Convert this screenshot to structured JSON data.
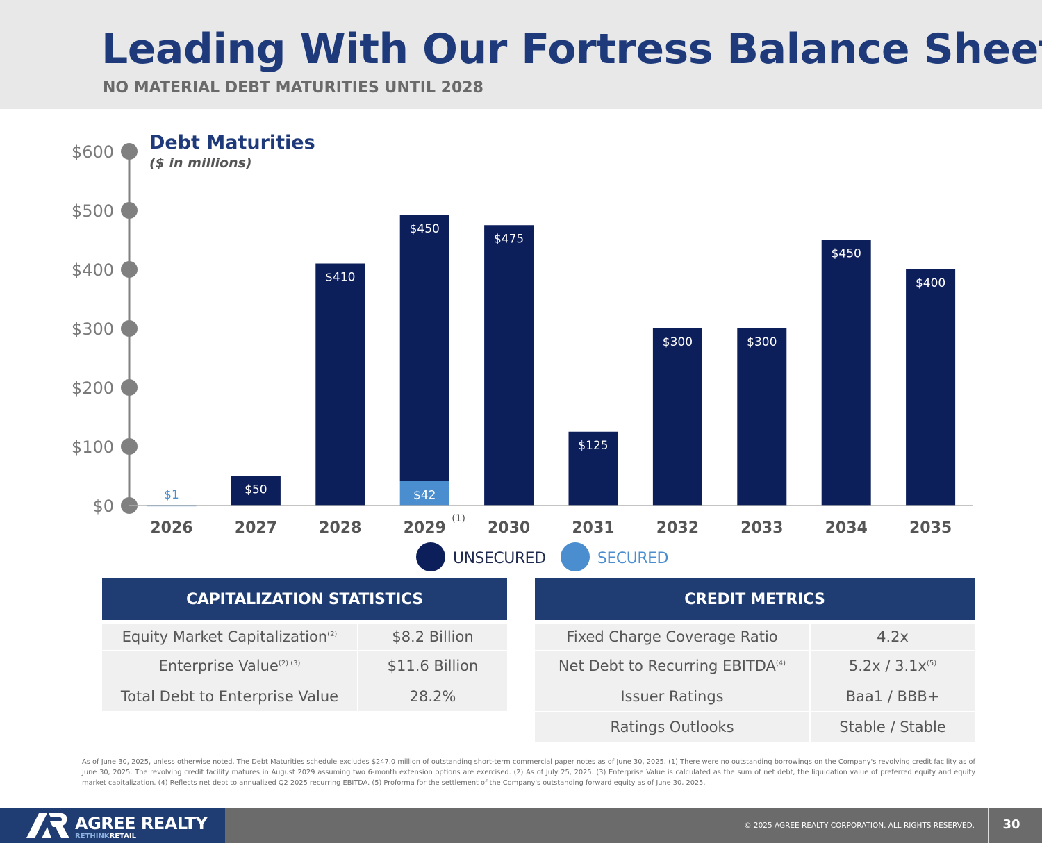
{
  "header": {
    "title": "Leading With Our Fortress Balance Sheet",
    "subtitle": "NO MATERIAL DEBT MATURITIES UNTIL 2028"
  },
  "chart_data": {
    "type": "bar",
    "stacked": true,
    "title": "Debt Maturities",
    "subtitle": "($ in millions)",
    "ylim": [
      0,
      600
    ],
    "yticks": [
      0,
      100,
      200,
      300,
      400,
      500,
      600
    ],
    "ytick_labels": [
      "$0",
      "$100",
      "$200",
      "$300",
      "$400",
      "$500",
      "$600"
    ],
    "categories": [
      "2026",
      "2027",
      "2028",
      "2029",
      "2030",
      "2031",
      "2032",
      "2033",
      "2034",
      "2035"
    ],
    "category_notes": [
      "",
      "",
      "",
      "(1)",
      "",
      "",
      "",
      "",
      "",
      ""
    ],
    "series": [
      {
        "name": "SECURED",
        "color": "#4a8ed0",
        "values": [
          1,
          0,
          0,
          42,
          0,
          0,
          0,
          0,
          0,
          0
        ],
        "labels": [
          "$1",
          "",
          "",
          "$42",
          "",
          "",
          "",
          "",
          "",
          ""
        ]
      },
      {
        "name": "UNSECURED",
        "color": "#0d1f5a",
        "values": [
          0,
          50,
          410,
          450,
          475,
          125,
          300,
          300,
          450,
          400
        ],
        "labels": [
          "",
          "$50",
          "$410",
          "$450",
          "$475",
          "$125",
          "$300",
          "$300",
          "$450",
          "$400"
        ]
      }
    ],
    "legend": [
      "UNSECURED",
      "SECURED"
    ],
    "legend_position": "bottom-center",
    "grid": false
  },
  "capitalization": {
    "header": "CAPITALIZATION STATISTICS",
    "rows": [
      {
        "label": "Equity Market Capitalization",
        "note": "(2)",
        "value": "$8.2 Billion"
      },
      {
        "label": "Enterprise Value",
        "note": "(2) (3)",
        "value": "$11.6 Billion"
      },
      {
        "label": "Total Debt to Enterprise Value",
        "note": "",
        "value": "28.2%"
      }
    ]
  },
  "credit": {
    "header": "CREDIT METRICS",
    "rows": [
      {
        "label": "Fixed Charge Coverage Ratio",
        "note": "",
        "value": "4.2x",
        "value_note": ""
      },
      {
        "label": "Net Debt to Recurring EBITDA",
        "note": "(4)",
        "value": "5.2x / 3.1x",
        "value_note": "(5)"
      },
      {
        "label": "Issuer Ratings",
        "note": "",
        "value": "Baa1 / BBB+",
        "value_note": ""
      },
      {
        "label": "Ratings Outlooks",
        "note": "",
        "value": "Stable / Stable",
        "value_note": ""
      }
    ]
  },
  "footnote": "As of June 30, 2025, unless otherwise noted. The Debt Maturities schedule excludes $247.0 million of outstanding short-term commercial paper notes as of June 30, 2025. (1) There were no outstanding borrowings on the Company's revolving credit facility as of June 30, 2025. The revolving credit facility matures in August 2029 assuming two 6-month extension options are exercised. (2) As of July 25, 2025. (3) Enterprise Value is calculated as the sum of net debt, the liquidation value of preferred equity and equity market capitalization. (4) Reflects net debt to annualized Q2 2025 recurring EBITDA. (5) Proforma for the settlement of the Company's outstanding forward equity as of June 30, 2025.",
  "footer": {
    "brand": "AGREE REALTY",
    "tagline_1": "RETHINK",
    "tagline_2": "RETAIL",
    "copyright": "© 2025 AGREE REALTY CORPORATION. ALL RIGHTS RESERVED.",
    "page": "30"
  }
}
